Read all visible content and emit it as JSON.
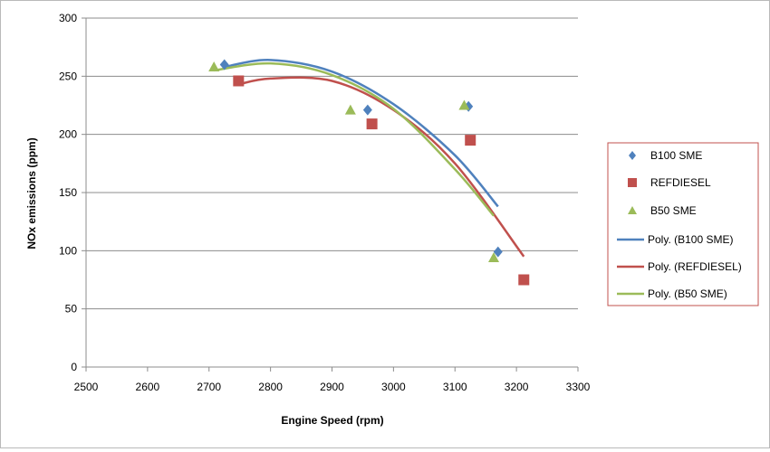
{
  "chart_data": {
    "type": "scatter",
    "xlabel": "Engine Speed (rpm)",
    "ylabel": "NOx emissions (ppm)",
    "xlim": [
      2500,
      3300
    ],
    "ylim": [
      0,
      300
    ],
    "xticks": [
      2500,
      2600,
      2700,
      2800,
      2900,
      3000,
      3100,
      3200,
      3300
    ],
    "yticks": [
      0,
      50,
      100,
      150,
      200,
      250,
      300
    ],
    "grid": "horizontal",
    "legend_position": "right",
    "series": [
      {
        "name": "B100 SME",
        "marker": "diamond",
        "color": "#4f81bd",
        "x": [
          2725,
          2958,
          3122,
          3170
        ],
        "y": [
          260,
          221,
          224,
          99
        ]
      },
      {
        "name": "REFDIESEL",
        "marker": "square",
        "color": "#c0504d",
        "x": [
          2748,
          2965,
          3125,
          3212
        ],
        "y": [
          246,
          209,
          195,
          75
        ]
      },
      {
        "name": "B50 SME",
        "marker": "triangle",
        "color": "#9bbb59",
        "x": [
          2708,
          2930,
          3115,
          3163
        ],
        "y": [
          258,
          221,
          225,
          94
        ]
      }
    ],
    "trendlines": [
      {
        "name": "Poly. (B100 SME)",
        "color": "#4f81bd",
        "x": [
          2725,
          2800,
          2900,
          3000,
          3100,
          3170
        ],
        "y": [
          258,
          264,
          254,
          226,
          182,
          138
        ]
      },
      {
        "name": "Poly. (REFDIESEL)",
        "color": "#c0504d",
        "x": [
          2748,
          2800,
          2900,
          3000,
          3100,
          3212
        ],
        "y": [
          243,
          248,
          246,
          221,
          175,
          95
        ]
      },
      {
        "name": "Poly. (B50 SME)",
        "color": "#9bbb59",
        "x": [
          2708,
          2800,
          2900,
          3000,
          3100,
          3163
        ],
        "y": [
          255,
          261,
          251,
          222,
          170,
          130
        ]
      }
    ]
  }
}
